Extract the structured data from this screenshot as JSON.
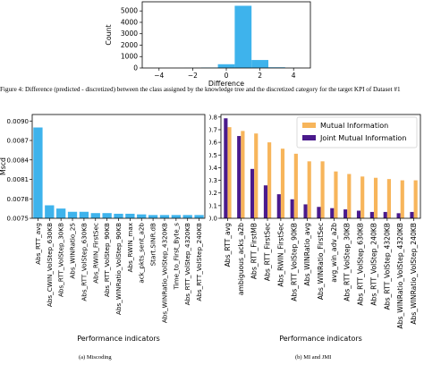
{
  "caption": {
    "text": "Figure 4: Difference (predicted - discretized) between the class assigned by the knowledge tree and the discretized category for the target KPI of Dataset #1"
  },
  "subcaptions": {
    "a": "(a) Miscoding",
    "b": "(b) MI and JMI"
  },
  "colors": {
    "bar": "#3eb3ec",
    "mi": "#f7b55b",
    "jmi": "#4a1a8c"
  },
  "chart_data": [
    {
      "type": "bar",
      "xlabel": "Difference",
      "ylabel": "Count",
      "x": [
        -4,
        -3,
        -2,
        -1,
        0,
        1,
        2,
        3,
        4
      ],
      "values": [
        0,
        0,
        8,
        40,
        330,
        5450,
        700,
        60,
        5
      ],
      "bar_edges": [
        [
          -4.5,
          -3.5
        ],
        [
          -3.5,
          -2.5
        ],
        [
          -2.5,
          -1.5
        ],
        [
          -1.5,
          -0.5
        ],
        [
          -0.5,
          0.5
        ],
        [
          0.5,
          1.5
        ],
        [
          1.5,
          2.5
        ],
        [
          2.5,
          3.5
        ],
        [
          3.5,
          4.5
        ]
      ],
      "xticks": [
        -4,
        -2,
        0,
        2,
        4
      ],
      "yticks": [
        0,
        1000,
        2000,
        3000,
        4000,
        5000
      ],
      "xlim": [
        -5,
        5
      ],
      "ylim": [
        0,
        5800
      ]
    },
    {
      "type": "bar",
      "xlabel": "Performance indicators",
      "ylabel": "Mscd",
      "categories": [
        "Abs_RTT_avg",
        "Abs_CWIN_VolStep_630KB",
        "Abs_RTT_VolStep_30KB",
        "Abs_WINRatio_25",
        "Abs_RTT_VolStep_630KB",
        "Abs_RWIN_FirstSec",
        "Abs_RTT_VolStep_90KB",
        "Abs_WINRatio_VolStep_90KB",
        "Abs_RWIN_max",
        "ack_pkts_sent_a2b",
        "Start.SINR.dB",
        "Abs_WINRatio_VolStep_4320KB",
        "Time_to_First_Byte_s",
        "Abs_RTT_VolStep_4320KB",
        "Abs_RTT_VolStep_240KB"
      ],
      "values": [
        0.0089,
        0.0077,
        0.00765,
        0.0076,
        0.0076,
        0.00758,
        0.00758,
        0.00757,
        0.00757,
        0.00756,
        0.00755,
        0.00755,
        0.00755,
        0.00755,
        0.00755
      ],
      "yticks": [
        0.0075,
        0.0078,
        0.0081,
        0.0084,
        0.0087,
        0.009
      ],
      "ytick_labels": [
        "0.0075",
        "0.0078",
        "0.0081",
        "0.0084",
        "0.0087",
        "0.0090"
      ],
      "ylim": [
        0.0075,
        0.0091
      ]
    },
    {
      "type": "bar",
      "xlabel": "Performance indicators",
      "ylabel": "",
      "legend": "top-right",
      "categories": [
        "Abs_RTT_avg",
        "ambiguous_acks_a2b",
        "Abs_RTT_FirstMB",
        "Abs_RTT_FirstSec",
        "Abs_RWIN_FirstSec",
        "Abs_RTT_VolStep_90KB",
        "Abs_WINRatio_avg",
        "Abs_WINRatio_FirstSec",
        "avg_win_adv_a2b",
        "Abs_RTT_VolStep_30KB",
        "Abs_RTT_VolStep_630KB",
        "Abs_RTT_VolStep_240KB",
        "Abs_RTT_VolStep_4320KB",
        "Abs_WINRatio_VolStep_4320KB",
        "Abs_WINRatio_VolStep_240KB"
      ],
      "series": [
        {
          "name": "Mutual Information",
          "values": [
            0.72,
            0.69,
            0.67,
            0.6,
            0.55,
            0.51,
            0.45,
            0.45,
            0.37,
            0.35,
            0.33,
            0.32,
            0.31,
            0.3,
            0.3
          ]
        },
        {
          "name": "Joint Mutual Information",
          "values": [
            0.79,
            0.65,
            0.39,
            0.26,
            0.19,
            0.15,
            0.11,
            0.09,
            0.08,
            0.07,
            0.06,
            0.05,
            0.05,
            0.04,
            0.05
          ]
        }
      ],
      "yticks": [
        0,
        0.1,
        0.2,
        0.3,
        0.4,
        0.5,
        0.6,
        0.7,
        0.8
      ],
      "ytick_labels": [
        "0.0",
        "0.1",
        "0.2",
        "0.3",
        "0.4",
        "0.5",
        "0.6",
        "0.7",
        "0.8"
      ],
      "ylim": [
        0,
        0.82
      ]
    }
  ]
}
